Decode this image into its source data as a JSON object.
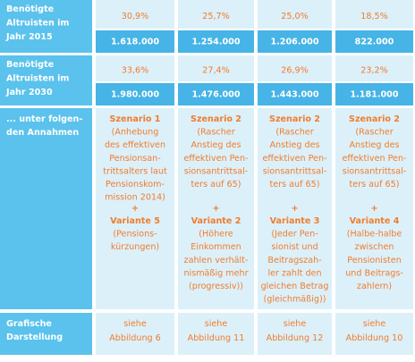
{
  "table": {
    "rows": [
      {
        "label": [
          "Benötigte",
          "Altruisten im",
          "Jahr 2015"
        ],
        "percents": [
          "30,9%",
          "25,7%",
          "25,0%",
          "18,5%"
        ],
        "numbers": [
          "1.618.000",
          "1.254.000",
          "1.206.000",
          "822.000"
        ]
      },
      {
        "label": [
          "Benötigte",
          "Altruisten im",
          "Jahr 2030"
        ],
        "percents": [
          "33,6%",
          "27,4%",
          "26,9%",
          "23,2%"
        ],
        "numbers": [
          "1.980.000",
          "1.476.000",
          "1.443.000",
          "1.181.000"
        ]
      }
    ],
    "assumptions": {
      "label": [
        "... unter folgen-",
        "den Annahmen"
      ],
      "cells": [
        {
          "title": "Szenario 1",
          "lines": [
            "(Anhebung",
            "des effektiven",
            "Pensionsan-",
            "trittsalters laut",
            "Pensionskom-",
            "mission 2014)"
          ],
          "plus": "+",
          "variant": "Variante 5",
          "variant_lines": [
            "(Pensions-",
            "kürzungen)"
          ]
        },
        {
          "title": "Szenario 2",
          "lines": [
            "(Rascher",
            "Anstieg des",
            "effektiven Pen-",
            "sionsantrittsal-",
            "ters auf 65)"
          ],
          "plus": "+",
          "variant": "Variante 2",
          "variant_lines": [
            "(Höhere",
            "Einkommen",
            "zahlen verhält-",
            "nismäßig mehr",
            "(progressiv))"
          ]
        },
        {
          "title": "Szenario 2",
          "lines": [
            "(Rascher",
            "Anstieg des",
            "effektiven Pen-",
            "sionsantrittsal-",
            "ters auf 65)"
          ],
          "plus": "+",
          "variant": "Variante 3",
          "variant_lines": [
            "(Jeder Pen-",
            "sionist und",
            "Beitragszah-",
            "ler zahlt den",
            "gleichen Betrag",
            "(gleichmäßig))"
          ]
        },
        {
          "title": "Szenario 2",
          "lines": [
            "(Rascher",
            "Anstieg des",
            "effektiven Pen-",
            "sionsantrittsal-",
            "ters auf 65)"
          ],
          "plus": "+",
          "variant": "Variante 4",
          "variant_lines": [
            "(Halbe-halbe",
            "zwischen",
            "Pensionisten",
            "und Beitrags-",
            "zahlern)"
          ]
        }
      ]
    },
    "graphics": {
      "label": [
        "Grafische",
        "Darstellung"
      ],
      "cells": [
        [
          "siehe",
          "Abbildung 6"
        ],
        [
          "siehe",
          "Abbildung 11"
        ],
        [
          "siehe",
          "Abbildung 12"
        ],
        [
          "siehe",
          "Abbildung 10"
        ]
      ]
    }
  }
}
